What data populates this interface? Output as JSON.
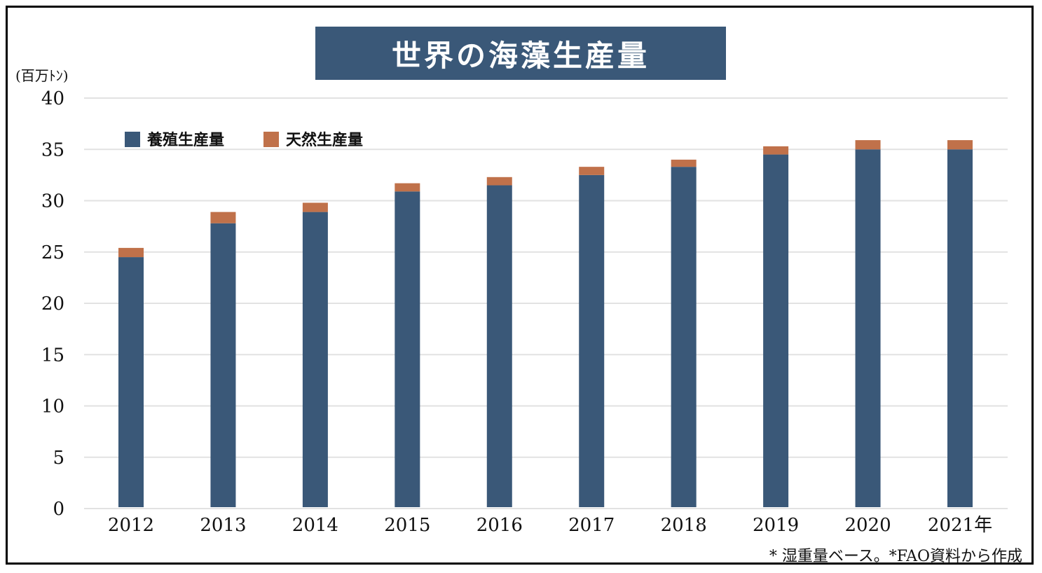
{
  "chart_data": {
    "type": "bar",
    "stacked": true,
    "title": "世界の海藻生産量",
    "unit_label": "(百万ﾄﾝ)",
    "categories": [
      "2012",
      "2013",
      "2014",
      "2015",
      "2016",
      "2017",
      "2018",
      "2019",
      "2020",
      "2021年"
    ],
    "series": [
      {
        "name": "養殖生産量",
        "color": "#3a5878",
        "values": [
          24.5,
          27.8,
          28.9,
          30.9,
          31.5,
          32.5,
          33.3,
          34.5,
          35.0,
          35.0
        ]
      },
      {
        "name": "天然生産量",
        "color": "#c0714a",
        "values": [
          0.9,
          1.1,
          0.9,
          0.8,
          0.8,
          0.8,
          0.7,
          0.8,
          0.9,
          0.9
        ]
      }
    ],
    "ylim": [
      0,
      40
    ],
    "yticks": [
      "0",
      "5",
      "10",
      "15",
      "20",
      "25",
      "30",
      "35",
      "40"
    ],
    "ytick_values": [
      0,
      5,
      10,
      15,
      20,
      25,
      30,
      35,
      40
    ],
    "grid": true,
    "legend_position": "top-left",
    "footnote": "* 湿重量ベース。*FAO資料から作成"
  }
}
